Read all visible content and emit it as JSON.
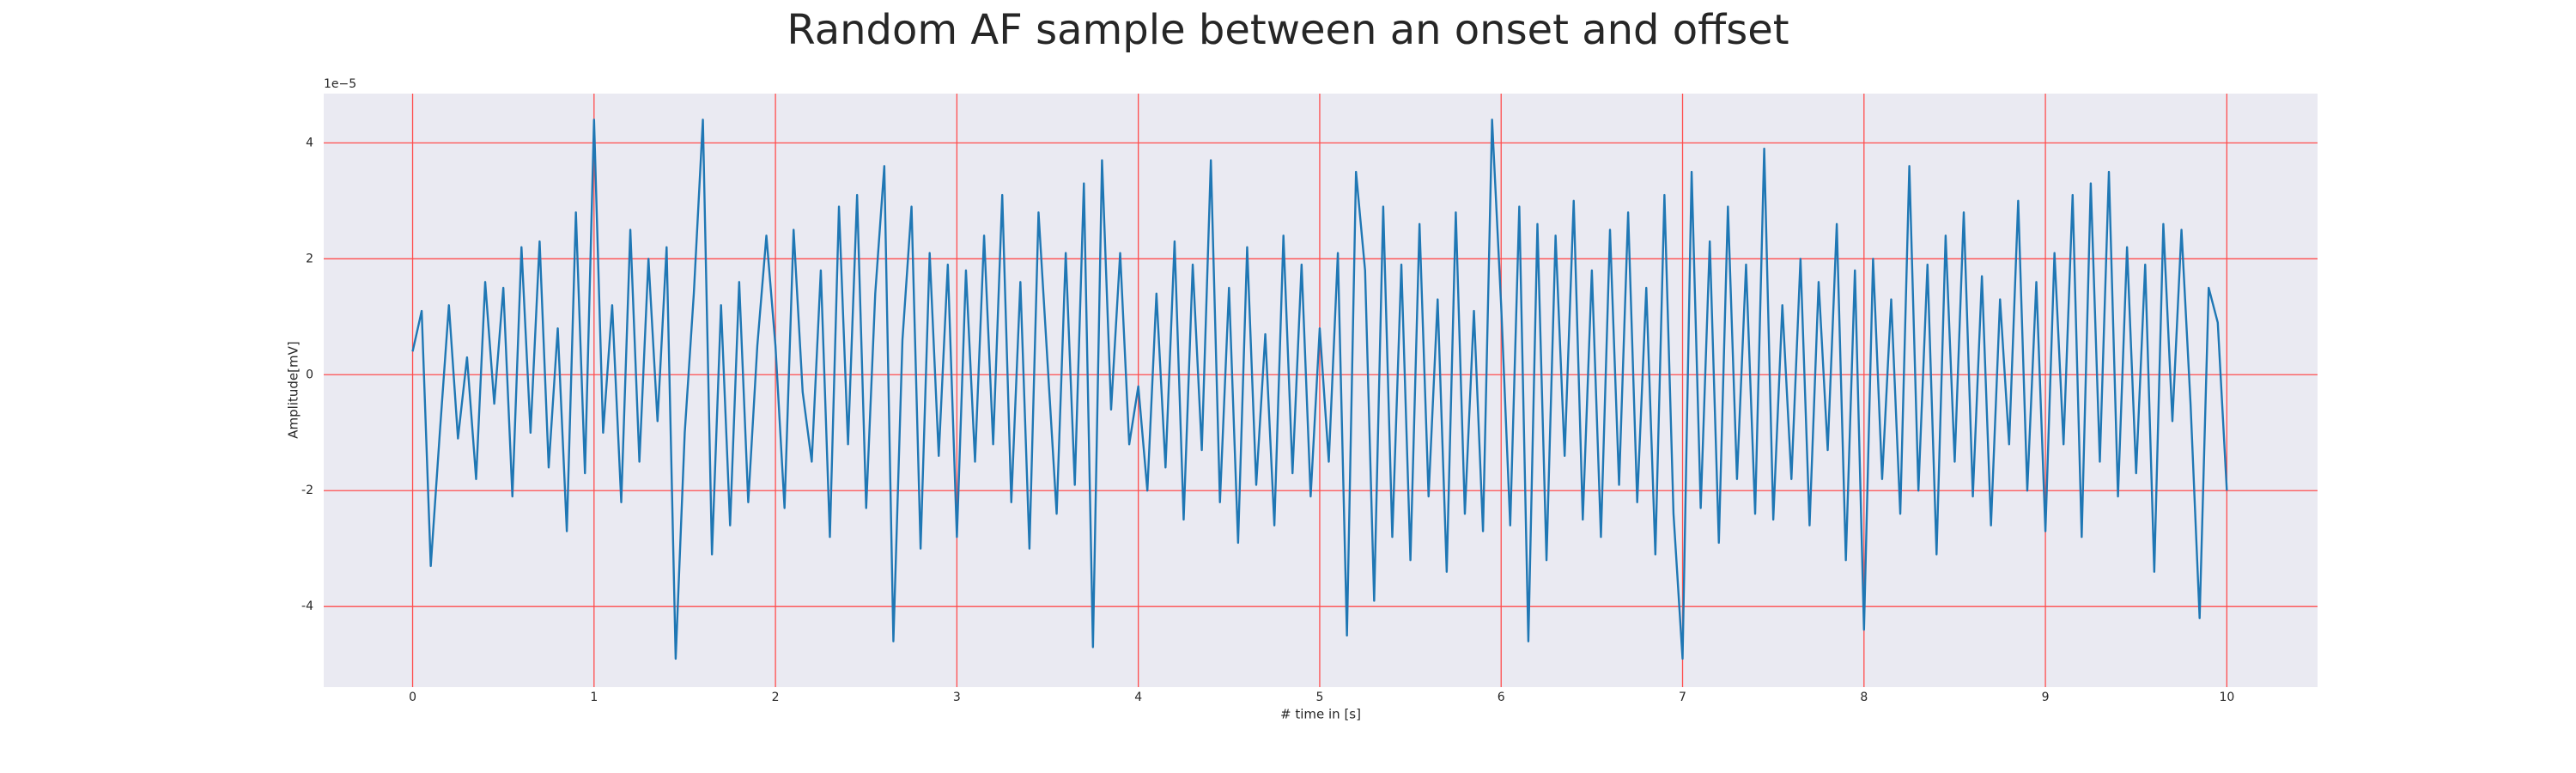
{
  "chart_data": {
    "type": "line",
    "title": "Random AF sample between an onset and offset",
    "xlabel": "# time in [s]",
    "ylabel": "Amplitude[mV]",
    "y_offset_label": "1e−5",
    "xlim": [
      -0.49,
      10.5
    ],
    "ylim": [
      -5.39,
      4.85
    ],
    "xticks": [
      0,
      1,
      2,
      3,
      4,
      5,
      6,
      7,
      8,
      9,
      10
    ],
    "yticks": [
      -4,
      -2,
      0,
      2,
      4
    ],
    "grid": true,
    "grid_color": "#ff4d4d",
    "background": "#eaeaf2",
    "series": [
      {
        "color": "#1f77b4",
        "x": [
          0,
          0.05,
          0.1,
          0.15,
          0.2,
          0.25,
          0.3,
          0.35,
          0.4,
          0.45,
          0.5,
          0.55,
          0.6,
          0.65,
          0.7,
          0.75,
          0.8,
          0.85,
          0.9,
          0.95,
          1,
          1.05,
          1.1,
          1.15,
          1.2,
          1.25,
          1.3,
          1.35,
          1.4,
          1.45,
          1.5,
          1.55,
          1.6,
          1.65,
          1.7,
          1.75,
          1.8,
          1.85,
          1.9,
          1.95,
          2,
          2.05,
          2.1,
          2.15,
          2.2,
          2.25,
          2.3,
          2.35,
          2.4,
          2.45,
          2.5,
          2.55,
          2.6,
          2.65,
          2.7,
          2.75,
          2.8,
          2.85,
          2.9,
          2.95,
          3,
          3.05,
          3.1,
          3.15,
          3.2,
          3.25,
          3.3,
          3.35,
          3.4,
          3.45,
          3.5,
          3.55,
          3.6,
          3.65,
          3.7,
          3.75,
          3.8,
          3.85,
          3.9,
          3.95,
          4,
          4.05,
          4.1,
          4.15,
          4.2,
          4.25,
          4.3,
          4.35,
          4.4,
          4.45,
          4.5,
          4.55,
          4.6,
          4.65,
          4.7,
          4.75,
          4.8,
          4.85,
          4.9,
          4.95,
          5,
          5.05,
          5.1,
          5.15,
          5.2,
          5.25,
          5.3,
          5.35,
          5.4,
          5.45,
          5.5,
          5.55,
          5.6,
          5.65,
          5.7,
          5.75,
          5.8,
          5.85,
          5.9,
          5.95,
          6,
          6.05,
          6.1,
          6.15,
          6.2,
          6.25,
          6.3,
          6.35,
          6.4,
          6.45,
          6.5,
          6.55,
          6.6,
          6.65,
          6.7,
          6.75,
          6.8,
          6.85,
          6.9,
          6.95,
          7,
          7.05,
          7.1,
          7.15,
          7.2,
          7.25,
          7.3,
          7.35,
          7.4,
          7.45,
          7.5,
          7.55,
          7.6,
          7.65,
          7.7,
          7.75,
          7.8,
          7.85,
          7.9,
          7.95,
          8,
          8.05,
          8.1,
          8.15,
          8.2,
          8.25,
          8.3,
          8.35,
          8.4,
          8.45,
          8.5,
          8.55,
          8.6,
          8.65,
          8.7,
          8.75,
          8.8,
          8.85,
          8.9,
          8.95,
          9,
          9.05,
          9.1,
          9.15,
          9.2,
          9.25,
          9.3,
          9.35,
          9.4,
          9.45,
          9.5,
          9.55,
          9.6,
          9.65,
          9.7,
          9.75,
          9.8,
          9.85,
          9.9,
          9.95,
          10
        ],
        "values": [
          0.4,
          1.1,
          -3.3,
          -1.0,
          1.2,
          -1.1,
          0.3,
          -1.8,
          1.6,
          -0.5,
          1.5,
          -2.1,
          2.2,
          -1.0,
          2.3,
          -1.6,
          0.8,
          -2.7,
          2.8,
          -1.7,
          4.4,
          -1.0,
          1.2,
          -2.2,
          2.5,
          -1.5,
          2.0,
          -0.8,
          2.2,
          -4.9,
          -1.0,
          1.4,
          4.4,
          -3.1,
          1.2,
          -2.6,
          1.6,
          -2.2,
          0.5,
          2.4,
          0.5,
          -2.3,
          2.5,
          -0.3,
          -1.5,
          1.8,
          -2.8,
          2.9,
          -1.2,
          3.1,
          -2.3,
          1.4,
          3.6,
          -4.6,
          0.6,
          2.9,
          -3.0,
          2.1,
          -1.4,
          1.9,
          -2.8,
          1.8,
          -1.5,
          2.4,
          -1.2,
          3.1,
          -2.2,
          1.6,
          -3.0,
          2.8,
          0.2,
          -2.4,
          2.1,
          -1.9,
          3.3,
          -4.7,
          3.7,
          -0.6,
          2.1,
          -1.2,
          -0.2,
          -2.0,
          1.4,
          -1.6,
          2.3,
          -2.5,
          1.9,
          -1.3,
          3.7,
          -2.2,
          1.5,
          -2.9,
          2.2,
          -1.9,
          0.7,
          -2.6,
          2.4,
          -1.7,
          1.9,
          -2.1,
          0.8,
          -1.5,
          2.1,
          -4.5,
          3.5,
          1.8,
          -3.9,
          2.9,
          -2.8,
          1.9,
          -3.2,
          2.6,
          -2.1,
          1.3,
          -3.4,
          2.8,
          -2.4,
          1.1,
          -2.7,
          4.4,
          1.2,
          -2.6,
          2.9,
          -4.6,
          2.6,
          -3.2,
          2.4,
          -1.4,
          3.0,
          -2.5,
          1.8,
          -2.8,
          2.5,
          -1.9,
          2.8,
          -2.2,
          1.5,
          -3.1,
          3.1,
          -2.4,
          -4.9,
          3.5,
          -2.3,
          2.3,
          -2.9,
          2.9,
          -1.8,
          1.9,
          -2.4,
          3.9,
          -2.5,
          1.2,
          -1.8,
          2.0,
          -2.6,
          1.6,
          -1.3,
          2.6,
          -3.2,
          1.8,
          -4.4,
          2.0,
          -1.8,
          1.3,
          -2.4,
          3.6,
          -2.0,
          1.9,
          -3.1,
          2.4,
          -1.5,
          2.8,
          -2.1,
          1.7,
          -2.6,
          1.3,
          -1.2,
          3.0,
          -2.0,
          1.6,
          -2.7,
          2.1,
          -1.2,
          3.1,
          -2.8,
          3.3,
          -1.5,
          3.5,
          -2.1,
          2.2,
          -1.7,
          1.9,
          -3.4,
          2.6,
          -0.8,
          2.5,
          -0.5,
          -4.2,
          1.5,
          0.9,
          -2.0
        ]
      }
    ]
  }
}
